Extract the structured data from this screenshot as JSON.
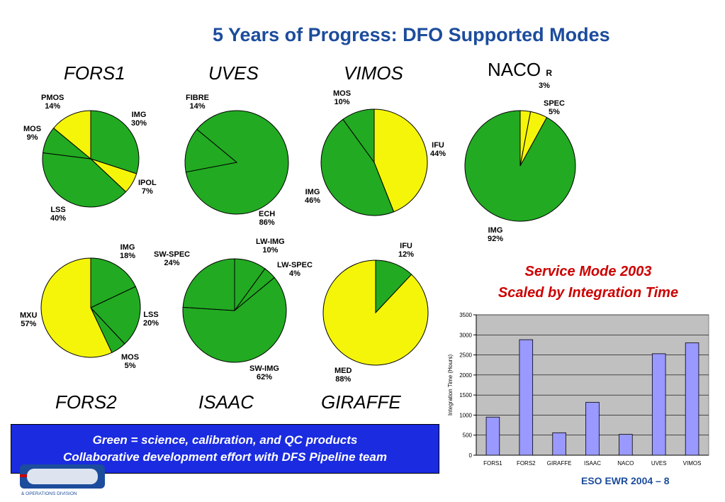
{
  "title": "5 Years of Progress: DFO Supported Modes",
  "colors": {
    "science": "#22aa22",
    "other": "#f5f50a",
    "bar": "#9999ff",
    "plot_bg": "#c0c0c0",
    "title_blue": "#1c4c9c",
    "red": "#cc0000",
    "box_blue": "#1a2be0"
  },
  "instruments": {
    "fors1": "FORS1",
    "uves": "UVES",
    "vimos": "VIMOS",
    "naco": "NACO",
    "naco_suffix": "R",
    "fors2": "FORS2",
    "isaac": "ISAAC",
    "giraffe": "GIRAFFE"
  },
  "service_mode": {
    "line1": "Service Mode 2003",
    "line2": "Scaled by Integration Time"
  },
  "legend_box": {
    "line1": "Green = science, calibration, and QC products",
    "line2": "Collaborative development effort with DFS Pipeline team"
  },
  "footer": {
    "text": "ESO EWR 2004  –  8"
  },
  "logo": {
    "text": "& OPERATIONS DIVISION"
  },
  "naco_clipped_label": "3%",
  "chart_data": [
    {
      "type": "pie",
      "instrument": "FORS1",
      "slices": [
        {
          "label": "IMG",
          "value": 30,
          "pct": "30%",
          "color": "green"
        },
        {
          "label": "IPOL",
          "value": 7,
          "pct": "7%",
          "color": "yellow"
        },
        {
          "label": "LSS",
          "value": 40,
          "pct": "40%",
          "color": "green"
        },
        {
          "label": "MOS",
          "value": 9,
          "pct": "9%",
          "color": "green"
        },
        {
          "label": "PMOS",
          "value": 14,
          "pct": "14%",
          "color": "yellow"
        }
      ]
    },
    {
      "type": "pie",
      "instrument": "UVES",
      "slices": [
        {
          "label": "ECH",
          "value": 86,
          "pct": "86%",
          "color": "green"
        },
        {
          "label": "FIBRE",
          "value": 14,
          "pct": "14%",
          "color": "green"
        }
      ]
    },
    {
      "type": "pie",
      "instrument": "VIMOS",
      "slices": [
        {
          "label": "IFU",
          "value": 44,
          "pct": "44%",
          "color": "yellow"
        },
        {
          "label": "IMG",
          "value": 46,
          "pct": "46%",
          "color": "green"
        },
        {
          "label": "MOS",
          "value": 10,
          "pct": "10%",
          "color": "green"
        }
      ]
    },
    {
      "type": "pie",
      "instrument": "NACO",
      "slices": [
        {
          "label": "",
          "value": 3,
          "pct": "3%",
          "color": "yellow"
        },
        {
          "label": "SPEC",
          "value": 5,
          "pct": "5%",
          "color": "yellow"
        },
        {
          "label": "IMG",
          "value": 92,
          "pct": "92%",
          "color": "green"
        }
      ]
    },
    {
      "type": "pie",
      "instrument": "FORS2",
      "slices": [
        {
          "label": "IMG",
          "value": 18,
          "pct": "18%",
          "color": "green"
        },
        {
          "label": "LSS",
          "value": 20,
          "pct": "20%",
          "color": "green"
        },
        {
          "label": "MOS",
          "value": 5,
          "pct": "5%",
          "color": "green"
        },
        {
          "label": "MXU",
          "value": 57,
          "pct": "57%",
          "color": "yellow"
        }
      ]
    },
    {
      "type": "pie",
      "instrument": "ISAAC",
      "slices": [
        {
          "label": "LW-IMG",
          "value": 10,
          "pct": "10%",
          "color": "green"
        },
        {
          "label": "LW-SPEC",
          "value": 4,
          "pct": "4%",
          "color": "green"
        },
        {
          "label": "SW-IMG",
          "value": 62,
          "pct": "62%",
          "color": "green"
        },
        {
          "label": "SW-SPEC",
          "value": 24,
          "pct": "24%",
          "color": "green"
        }
      ]
    },
    {
      "type": "pie",
      "instrument": "GIRAFFE",
      "slices": [
        {
          "label": "IFU",
          "value": 12,
          "pct": "12%",
          "color": "green"
        },
        {
          "label": "MED",
          "value": 88,
          "pct": "88%",
          "color": "yellow"
        }
      ]
    },
    {
      "type": "bar",
      "categories": [
        "FORS1",
        "FORS2",
        "GIRAFFE",
        "ISAAC",
        "NACO",
        "UVES",
        "VIMOS"
      ],
      "values": [
        950,
        2880,
        560,
        1320,
        520,
        2530,
        2800
      ],
      "ylabel": "Integration Time (Hours)",
      "ylim": [
        0,
        3500
      ],
      "yticks": [
        "0",
        "500",
        "1000",
        "1500",
        "2000",
        "2500",
        "3000",
        "3500"
      ],
      "grid": true
    }
  ]
}
